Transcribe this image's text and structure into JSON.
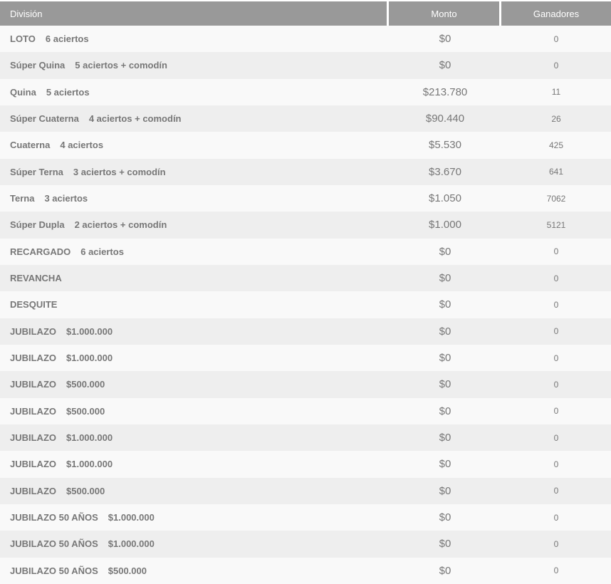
{
  "colors": {
    "header_bg": "#999999",
    "header_text": "#ffffff",
    "row_odd_bg": "#f9f9f9",
    "row_even_bg": "#eeeeee",
    "text_color": "#777777",
    "separator": "#ffffff"
  },
  "table": {
    "columns": [
      {
        "label": "División"
      },
      {
        "label": "Monto"
      },
      {
        "label": "Ganadores"
      }
    ],
    "rows": [
      {
        "name": "LOTO",
        "detail": "6 aciertos",
        "monto": "$0",
        "ganadores": "0"
      },
      {
        "name": "Súper Quina",
        "detail": "5 aciertos + comodín",
        "monto": "$0",
        "ganadores": "0"
      },
      {
        "name": "Quina",
        "detail": "5 aciertos",
        "monto": "$213.780",
        "ganadores": "11"
      },
      {
        "name": "Súper Cuaterna",
        "detail": "4 aciertos + comodín",
        "monto": "$90.440",
        "ganadores": "26"
      },
      {
        "name": "Cuaterna",
        "detail": "4 aciertos",
        "monto": "$5.530",
        "ganadores": "425"
      },
      {
        "name": "Súper Terna",
        "detail": "3 aciertos + comodín",
        "monto": "$3.670",
        "ganadores": "641"
      },
      {
        "name": "Terna",
        "detail": "3 aciertos",
        "monto": "$1.050",
        "ganadores": "7062"
      },
      {
        "name": "Súper Dupla",
        "detail": "2 aciertos + comodín",
        "monto": "$1.000",
        "ganadores": "5121"
      },
      {
        "name": "RECARGADO",
        "detail": "6 aciertos",
        "monto": "$0",
        "ganadores": "0"
      },
      {
        "name": "REVANCHA",
        "detail": "",
        "monto": "$0",
        "ganadores": "0"
      },
      {
        "name": "DESQUITE",
        "detail": "",
        "monto": "$0",
        "ganadores": "0"
      },
      {
        "name": "JUBILAZO",
        "detail": "$1.000.000",
        "monto": "$0",
        "ganadores": "0"
      },
      {
        "name": "JUBILAZO",
        "detail": "$1.000.000",
        "monto": "$0",
        "ganadores": "0"
      },
      {
        "name": "JUBILAZO",
        "detail": "$500.000",
        "monto": "$0",
        "ganadores": "0"
      },
      {
        "name": "JUBILAZO",
        "detail": "$500.000",
        "monto": "$0",
        "ganadores": "0"
      },
      {
        "name": "JUBILAZO",
        "detail": "$1.000.000",
        "monto": "$0",
        "ganadores": "0"
      },
      {
        "name": "JUBILAZO",
        "detail": "$1.000.000",
        "monto": "$0",
        "ganadores": "0"
      },
      {
        "name": "JUBILAZO",
        "detail": "$500.000",
        "monto": "$0",
        "ganadores": "0"
      },
      {
        "name": "JUBILAZO 50 AÑOS",
        "detail": "$1.000.000",
        "monto": "$0",
        "ganadores": "0"
      },
      {
        "name": "JUBILAZO 50 AÑOS",
        "detail": "$1.000.000",
        "monto": "$0",
        "ganadores": "0"
      },
      {
        "name": "JUBILAZO 50 AÑOS",
        "detail": "$500.000",
        "monto": "$0",
        "ganadores": "0"
      }
    ]
  }
}
